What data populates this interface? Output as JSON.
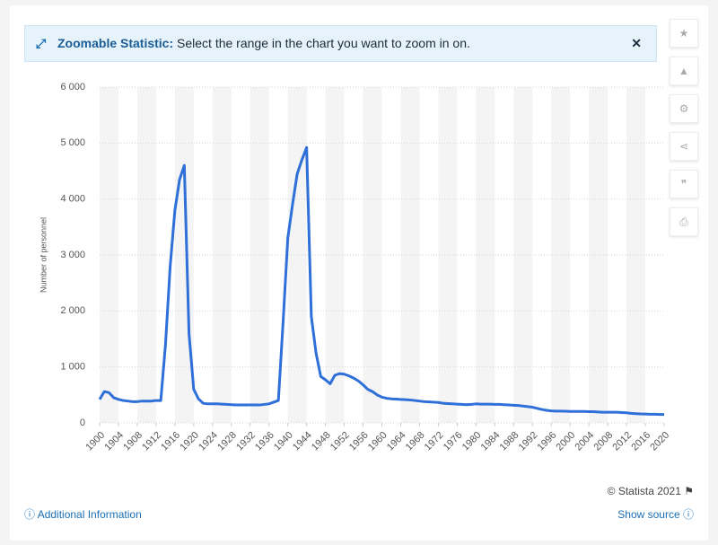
{
  "banner": {
    "title": "Zoomable Statistic:",
    "message": "Select the range in the chart you want to zoom in on."
  },
  "footer": {
    "copyright": "© Statista 2021",
    "info": "Additional Information",
    "source": "Show source"
  },
  "chart_data": {
    "type": "line",
    "y_label": "Number of personnel",
    "color": "#2e6fd8",
    "grid": true,
    "x": [
      1900,
      1901,
      1902,
      1903,
      1904,
      1905,
      1906,
      1907,
      1908,
      1909,
      1910,
      1911,
      1912,
      1913,
      1914,
      1915,
      1916,
      1917,
      1918,
      1919,
      1920,
      1921,
      1922,
      1923,
      1924,
      1925,
      1926,
      1927,
      1928,
      1929,
      1930,
      1931,
      1932,
      1933,
      1934,
      1935,
      1936,
      1937,
      1938,
      1939,
      1940,
      1941,
      1942,
      1943,
      1944,
      1945,
      1946,
      1947,
      1948,
      1949,
      1950,
      1951,
      1952,
      1953,
      1954,
      1955,
      1956,
      1957,
      1958,
      1959,
      1960,
      1961,
      1962,
      1963,
      1964,
      1965,
      1966,
      1967,
      1968,
      1969,
      1970,
      1971,
      1972,
      1973,
      1974,
      1975,
      1976,
      1977,
      1978,
      1979,
      1980,
      1981,
      1982,
      1983,
      1984,
      1985,
      1986,
      1987,
      1988,
      1989,
      1990,
      1991,
      1992,
      1993,
      1994,
      1995,
      1996,
      1997,
      1998,
      1999,
      2000,
      2001,
      2002,
      2003,
      2004,
      2005,
      2006,
      2007,
      2008,
      2009,
      2010,
      2011,
      2012,
      2013,
      2014,
      2015,
      2016,
      2017,
      2018,
      2019,
      2020
    ],
    "values": [
      420,
      560,
      540,
      450,
      420,
      400,
      390,
      380,
      380,
      390,
      390,
      390,
      400,
      400,
      1400,
      2800,
      3800,
      4350,
      4600,
      1600,
      600,
      430,
      350,
      340,
      340,
      340,
      335,
      330,
      325,
      320,
      320,
      320,
      320,
      320,
      320,
      330,
      340,
      370,
      400,
      1800,
      3300,
      3900,
      4450,
      4700,
      4920,
      1900,
      1250,
      830,
      770,
      700,
      850,
      880,
      870,
      840,
      800,
      750,
      680,
      600,
      560,
      500,
      460,
      440,
      430,
      425,
      420,
      415,
      410,
      400,
      390,
      380,
      375,
      370,
      365,
      350,
      345,
      340,
      335,
      330,
      325,
      330,
      340,
      335,
      335,
      335,
      330,
      330,
      325,
      320,
      315,
      310,
      300,
      290,
      280,
      260,
      240,
      225,
      215,
      210,
      210,
      208,
      205,
      205,
      205,
      205,
      200,
      200,
      195,
      190,
      190,
      190,
      190,
      185,
      180,
      170,
      165,
      160,
      158,
      155,
      155,
      150,
      150
    ],
    "xlim": [
      1900,
      2020
    ],
    "xticks": [
      1900,
      1904,
      1908,
      1912,
      1916,
      1920,
      1924,
      1928,
      1932,
      1936,
      1940,
      1944,
      1948,
      1952,
      1956,
      1960,
      1964,
      1968,
      1972,
      1976,
      1980,
      1984,
      1988,
      1992,
      1996,
      2000,
      2004,
      2008,
      2012,
      2016,
      2020
    ],
    "ylim": [
      0,
      6000
    ],
    "yticks": [
      0,
      {
        "value": 1000,
        "label": "1 000"
      },
      {
        "value": 2000,
        "label": "2 000"
      },
      {
        "value": 3000,
        "label": "3 000"
      },
      {
        "value": 4000,
        "label": "4 000"
      },
      {
        "value": 5000,
        "label": "5 000"
      },
      {
        "value": 6000,
        "label": "6 000"
      }
    ]
  }
}
